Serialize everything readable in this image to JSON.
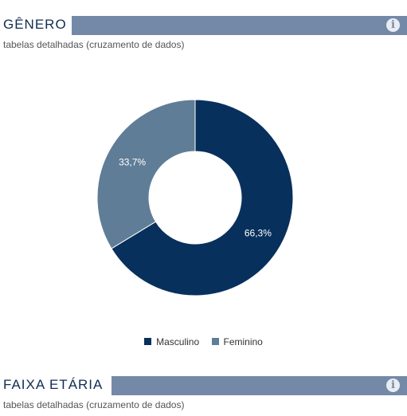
{
  "sections": [
    {
      "title": "GÊNERO",
      "subtitle": "tabelas detalhadas (cruzamento de dados)",
      "info_icon": "info-circle-icon",
      "info_glyph": "i"
    },
    {
      "title": "FAIXA ETÁRIA",
      "subtitle": "tabelas detalhadas (cruzamento de dados)",
      "info_icon": "info-circle-icon",
      "info_glyph": "i"
    }
  ],
  "colors": {
    "header_bar": "#7389a7",
    "masculino": "#08305c",
    "feminino": "#5f7d97"
  },
  "chart_data": {
    "type": "pie",
    "variant": "donut",
    "title": "",
    "categories": [
      "Masculino",
      "Feminino"
    ],
    "values": [
      66.3,
      33.7
    ],
    "labels": [
      "66,3%",
      "33,7%"
    ],
    "colors": [
      "#08305c",
      "#5f7d97"
    ],
    "legend": "bottom-center"
  }
}
